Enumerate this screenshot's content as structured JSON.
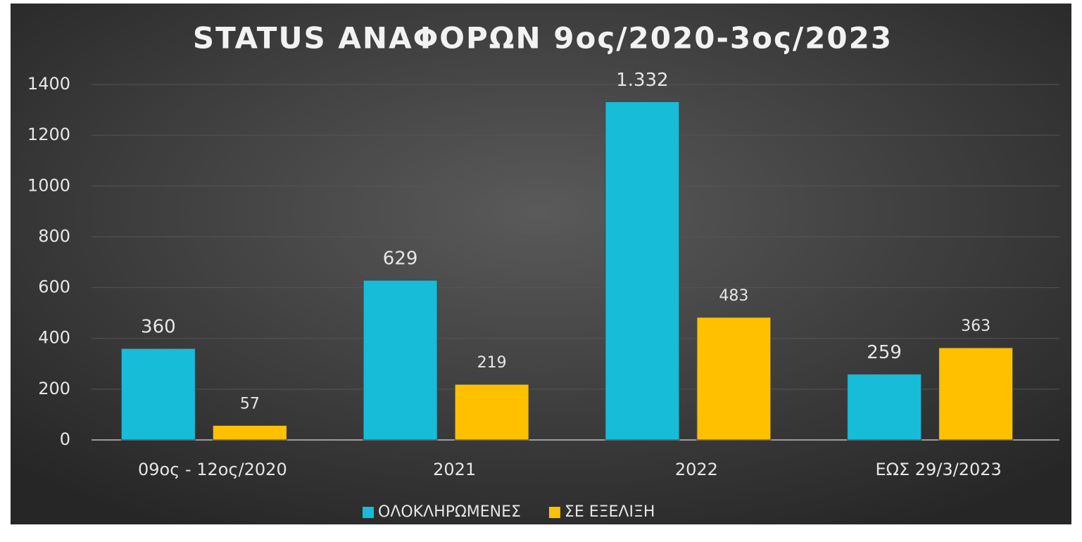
{
  "chart_data": {
    "type": "bar",
    "title": "STATUS ΑΝΑΦΟΡΩΝ 9ος/2020-3ος/2023",
    "categories": [
      "09ος - 12ος/2020",
      "2021",
      "2022",
      "ΕΩΣ 29/3/2023"
    ],
    "series": [
      {
        "name": "ΟΛΟΚΛΗΡΩΜΕΝΕΣ",
        "color": "#17bcd9",
        "values": [
          360,
          629,
          1332,
          259
        ],
        "value_labels": [
          "360",
          "629",
          "1.332",
          "259"
        ]
      },
      {
        "name": "ΣΕ ΕΞΕΛΙΞΗ",
        "color": "#ffc000",
        "values": [
          57,
          219,
          483,
          363
        ]
      }
    ],
    "ylim": [
      0,
      1400
    ],
    "yticks": [
      0,
      200,
      400,
      600,
      800,
      1000,
      1200,
      1400
    ],
    "grid": true,
    "legend": "bottom"
  }
}
